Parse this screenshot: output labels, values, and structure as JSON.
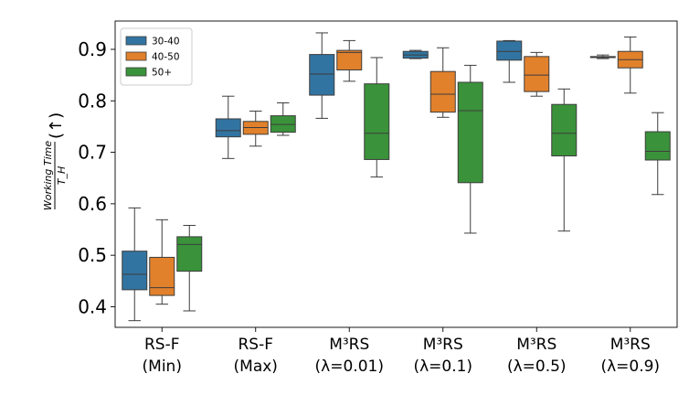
{
  "chart_data": {
    "type": "box",
    "categories": [
      {
        "line1": "RS-F",
        "line2": "(Min)"
      },
      {
        "line1": "RS-F",
        "line2": "(Max)"
      },
      {
        "line1": "M³RS",
        "line2": "(λ=0.01)"
      },
      {
        "line1": "M³RS",
        "line2": "(λ=0.1)"
      },
      {
        "line1": "M³RS",
        "line2": "(λ=0.5)"
      },
      {
        "line1": "M³RS",
        "line2": "(λ=0.9)"
      }
    ],
    "ylabel": {
      "numerator": "Working Time",
      "denominator": "T_H",
      "arrow": "(↑)"
    },
    "ylim": [
      0.36,
      0.955
    ],
    "yticks": [
      0.4,
      0.5,
      0.6,
      0.7,
      0.8,
      0.9
    ],
    "ytick_labels": [
      "0.4",
      "0.5",
      "0.6",
      "0.7",
      "0.8",
      "0.9"
    ],
    "legend": {
      "position": "top-left",
      "entries": [
        "30-40",
        "40-50",
        "50+"
      ]
    },
    "series": [
      {
        "name": "30-40",
        "color": "#3274a1",
        "boxes": [
          {
            "whislo": 0.373,
            "q1": 0.433,
            "med": 0.463,
            "q3": 0.508,
            "whishi": 0.592
          },
          {
            "whislo": 0.688,
            "q1": 0.73,
            "med": 0.742,
            "q3": 0.765,
            "whishi": 0.809
          },
          {
            "whislo": 0.766,
            "q1": 0.811,
            "med": 0.852,
            "q3": 0.89,
            "whishi": 0.932
          },
          {
            "whislo": 0.882,
            "q1": 0.883,
            "med": 0.889,
            "q3": 0.896,
            "whishi": 0.898
          },
          {
            "whislo": 0.836,
            "q1": 0.879,
            "med": 0.896,
            "q3": 0.916,
            "whishi": 0.917
          },
          {
            "whislo": 0.882,
            "q1": 0.884,
            "med": 0.885,
            "q3": 0.886,
            "whishi": 0.889
          }
        ]
      },
      {
        "name": "40-50",
        "color": "#e1812c",
        "boxes": [
          {
            "whislo": 0.405,
            "q1": 0.422,
            "med": 0.437,
            "q3": 0.496,
            "whishi": 0.569
          },
          {
            "whislo": 0.712,
            "q1": 0.735,
            "med": 0.748,
            "q3": 0.76,
            "whishi": 0.78
          },
          {
            "whislo": 0.838,
            "q1": 0.86,
            "med": 0.894,
            "q3": 0.898,
            "whishi": 0.917
          },
          {
            "whislo": 0.768,
            "q1": 0.778,
            "med": 0.813,
            "q3": 0.857,
            "whishi": 0.903
          },
          {
            "whislo": 0.809,
            "q1": 0.818,
            "med": 0.85,
            "q3": 0.886,
            "whishi": 0.894
          },
          {
            "whislo": 0.815,
            "q1": 0.864,
            "med": 0.88,
            "q3": 0.896,
            "whishi": 0.924
          }
        ]
      },
      {
        "name": "50+",
        "color": "#3a923a",
        "boxes": [
          {
            "whislo": 0.392,
            "q1": 0.469,
            "med": 0.521,
            "q3": 0.536,
            "whishi": 0.558
          },
          {
            "whislo": 0.733,
            "q1": 0.739,
            "med": 0.754,
            "q3": 0.771,
            "whishi": 0.796
          },
          {
            "whislo": 0.652,
            "q1": 0.686,
            "med": 0.737,
            "q3": 0.833,
            "whishi": 0.884
          },
          {
            "whislo": 0.543,
            "q1": 0.641,
            "med": 0.781,
            "q3": 0.836,
            "whishi": 0.869
          },
          {
            "whislo": 0.547,
            "q1": 0.693,
            "med": 0.737,
            "q3": 0.793,
            "whishi": 0.823
          },
          {
            "whislo": 0.618,
            "q1": 0.685,
            "med": 0.702,
            "q3": 0.74,
            "whishi": 0.777
          }
        ]
      }
    ]
  }
}
